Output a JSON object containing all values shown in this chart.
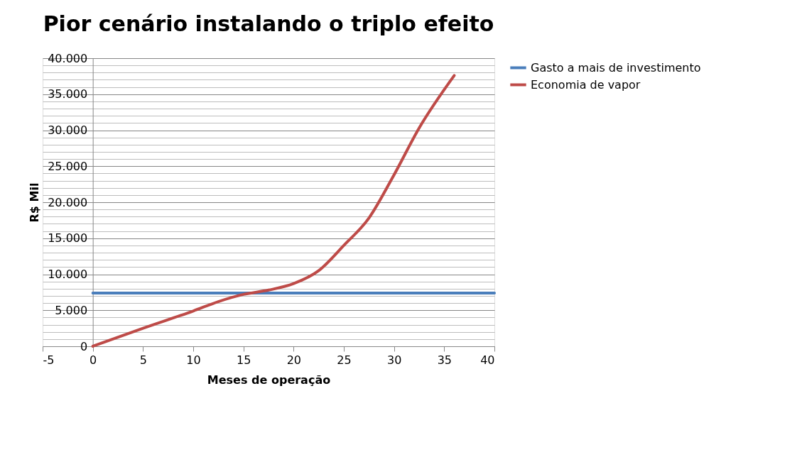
{
  "chart_data": {
    "type": "line",
    "title": "Pior cenário instalando o triplo efeito",
    "xlabel": "Meses de operação",
    "ylabel": "R$ Mil",
    "series": [
      {
        "name": "Gasto a mais de investimento",
        "color": "#4a7ebb",
        "x": [
          0,
          40
        ],
        "values": [
          7400,
          7400
        ]
      },
      {
        "name": "Economia de vapor",
        "color": "#be4b48",
        "x": [
          0,
          5,
          10,
          12.5,
          15,
          17.5,
          20,
          22.5,
          25,
          27.5,
          30,
          32.5,
          36
        ],
        "values": [
          0,
          2500,
          4900,
          6200,
          7200,
          7800,
          8700,
          10500,
          14000,
          17800,
          23800,
          30300,
          37600
        ]
      }
    ],
    "xlim": [
      -5,
      40
    ],
    "xticks": [
      -5,
      0,
      5,
      10,
      15,
      20,
      25,
      30,
      35,
      40
    ],
    "ylim": [
      0,
      40000
    ],
    "yticks": [
      {
        "value": 0,
        "label": "0"
      },
      {
        "value": 1000,
        "label": null
      },
      {
        "value": 2000,
        "label": null
      },
      {
        "value": 3000,
        "label": null
      },
      {
        "value": 4000,
        "label": null
      },
      {
        "value": 5000,
        "label": "5.000"
      },
      {
        "value": 6000,
        "label": null
      },
      {
        "value": 7000,
        "label": null
      },
      {
        "value": 8000,
        "label": null
      },
      {
        "value": 9000,
        "label": null
      },
      {
        "value": 10000,
        "label": "10.000"
      },
      {
        "value": 11000,
        "label": null
      },
      {
        "value": 12000,
        "label": null
      },
      {
        "value": 13000,
        "label": null
      },
      {
        "value": 14000,
        "label": null
      },
      {
        "value": 15000,
        "label": "15.000"
      },
      {
        "value": 16000,
        "label": null
      },
      {
        "value": 17000,
        "label": null
      },
      {
        "value": 18000,
        "label": null
      },
      {
        "value": 19000,
        "label": null
      },
      {
        "value": 20000,
        "label": "20.000"
      },
      {
        "value": 21000,
        "label": null
      },
      {
        "value": 22000,
        "label": null
      },
      {
        "value": 23000,
        "label": null
      },
      {
        "value": 24000,
        "label": null
      },
      {
        "value": 25000,
        "label": "25.000"
      },
      {
        "value": 26000,
        "label": null
      },
      {
        "value": 27000,
        "label": null
      },
      {
        "value": 28000,
        "label": null
      },
      {
        "value": 29000,
        "label": null
      },
      {
        "value": 30000,
        "label": "30.000"
      },
      {
        "value": 31000,
        "label": null
      },
      {
        "value": 32000,
        "label": null
      },
      {
        "value": 33000,
        "label": null
      },
      {
        "value": 34000,
        "label": null
      },
      {
        "value": 35000,
        "label": "35.000"
      },
      {
        "value": 36000,
        "label": null
      },
      {
        "value": 37000,
        "label": null
      },
      {
        "value": 38000,
        "label": null
      },
      {
        "value": 39000,
        "label": null
      },
      {
        "value": 40000,
        "label": "40.000"
      }
    ],
    "grid": "y",
    "legend": "right",
    "marker": "none",
    "line_style": "solid"
  }
}
